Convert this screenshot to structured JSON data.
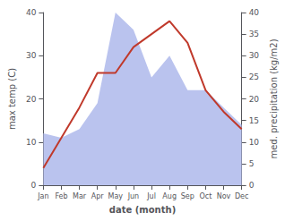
{
  "chart_data": {
    "type": "line",
    "xlabel": "date (month)",
    "ylabel": "max temp (C)",
    "y2label": "med. precipitation (kg/m2)",
    "categories": [
      "Jan",
      "Feb",
      "Mar",
      "Apr",
      "May",
      "Jun",
      "Jul",
      "Aug",
      "Sep",
      "Oct",
      "Nov",
      "Dec"
    ],
    "series": [
      {
        "type": "area",
        "axis": "y2",
        "color": "#b3bcec",
        "values": [
          12,
          11,
          13,
          19,
          40,
          36,
          25,
          30,
          22,
          22,
          18,
          14
        ]
      },
      {
        "type": "line",
        "color": "#c0392b",
        "values": [
          4,
          11,
          18,
          26,
          26,
          32,
          35,
          38,
          33,
          22,
          17,
          13
        ]
      }
    ],
    "ylim": [
      0,
      40
    ],
    "yticks": [
      0,
      10,
      20,
      30,
      40
    ],
    "y2lim": [
      0,
      40
    ],
    "y2ticks": [
      0,
      5,
      10,
      15,
      20,
      25,
      30,
      35,
      40
    ],
    "grid": false
  }
}
